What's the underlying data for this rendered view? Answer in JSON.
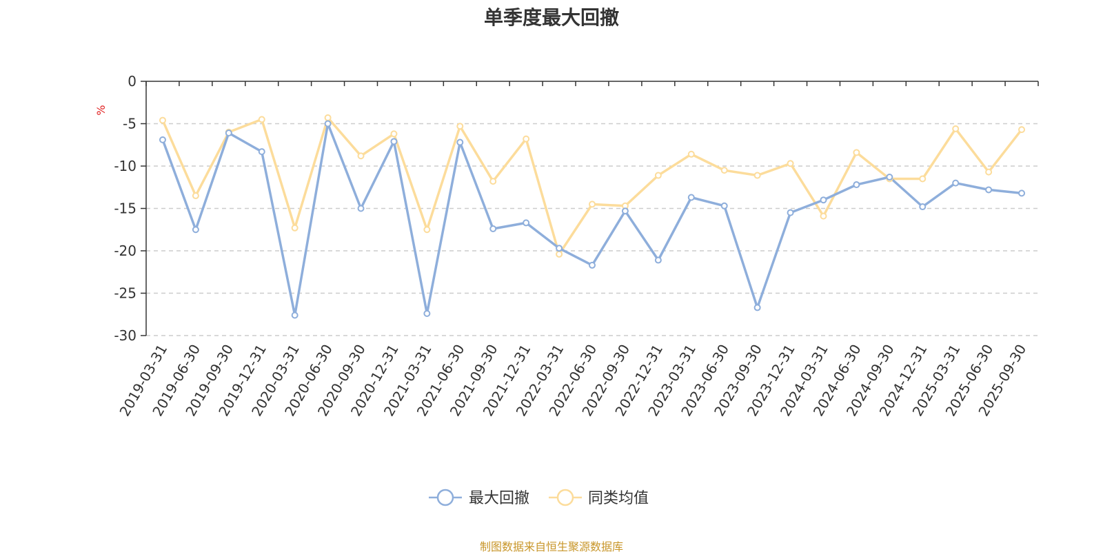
{
  "chart_data": {
    "type": "line",
    "title": "单季度最大回撤",
    "ylabel": "%",
    "xlabel": "",
    "ylim": [
      -30,
      0
    ],
    "yticks": [
      0,
      -5,
      -10,
      -15,
      -20,
      -25,
      -30
    ],
    "grid": true,
    "legend_position": "bottom-center",
    "categories": [
      "2019-03-31",
      "2019-06-30",
      "2019-09-30",
      "2019-12-31",
      "2020-03-31",
      "2020-06-30",
      "2020-09-30",
      "2020-12-31",
      "2021-03-31",
      "2021-06-30",
      "2021-09-30",
      "2021-12-31",
      "2022-03-31",
      "2022-06-30",
      "2022-09-30",
      "2022-12-31",
      "2023-03-31",
      "2023-06-30",
      "2023-09-30",
      "2023-12-31",
      "2024-03-31",
      "2024-06-30",
      "2024-09-30",
      "2024-12-31",
      "2025-03-31",
      "2025-06-30",
      "2025-09-30"
    ],
    "series": [
      {
        "name": "最大回撤",
        "color": "#8eaedb",
        "values": [
          -6.9,
          -17.5,
          -6.1,
          -8.3,
          -27.6,
          -5.0,
          -15.0,
          -7.1,
          -27.4,
          -7.2,
          -17.4,
          -16.7,
          -19.7,
          -21.7,
          -15.3,
          -21.1,
          -13.7,
          -14.7,
          -26.7,
          -15.5,
          -14.0,
          -12.2,
          -11.3,
          -14.8,
          -12.0,
          -12.8,
          -13.2
        ]
      },
      {
        "name": "同类均值",
        "color": "#fcdc9b",
        "values": [
          -4.6,
          -13.5,
          -6.0,
          -4.5,
          -17.3,
          -4.3,
          -8.8,
          -6.2,
          -17.5,
          -5.3,
          -11.8,
          -6.8,
          -20.4,
          -14.5,
          -14.7,
          -11.1,
          -8.6,
          -10.5,
          -11.1,
          -9.7,
          -15.9,
          -8.4,
          -11.5,
          -11.5,
          -5.6,
          -10.7,
          -5.7
        ]
      }
    ],
    "source": "制图数据来自恒生聚源数据库",
    "colors": {
      "axis": "#333333",
      "grid": "#cccccc",
      "ylabel": "#e02020",
      "source": "#c8962a",
      "text": "#333333"
    }
  }
}
